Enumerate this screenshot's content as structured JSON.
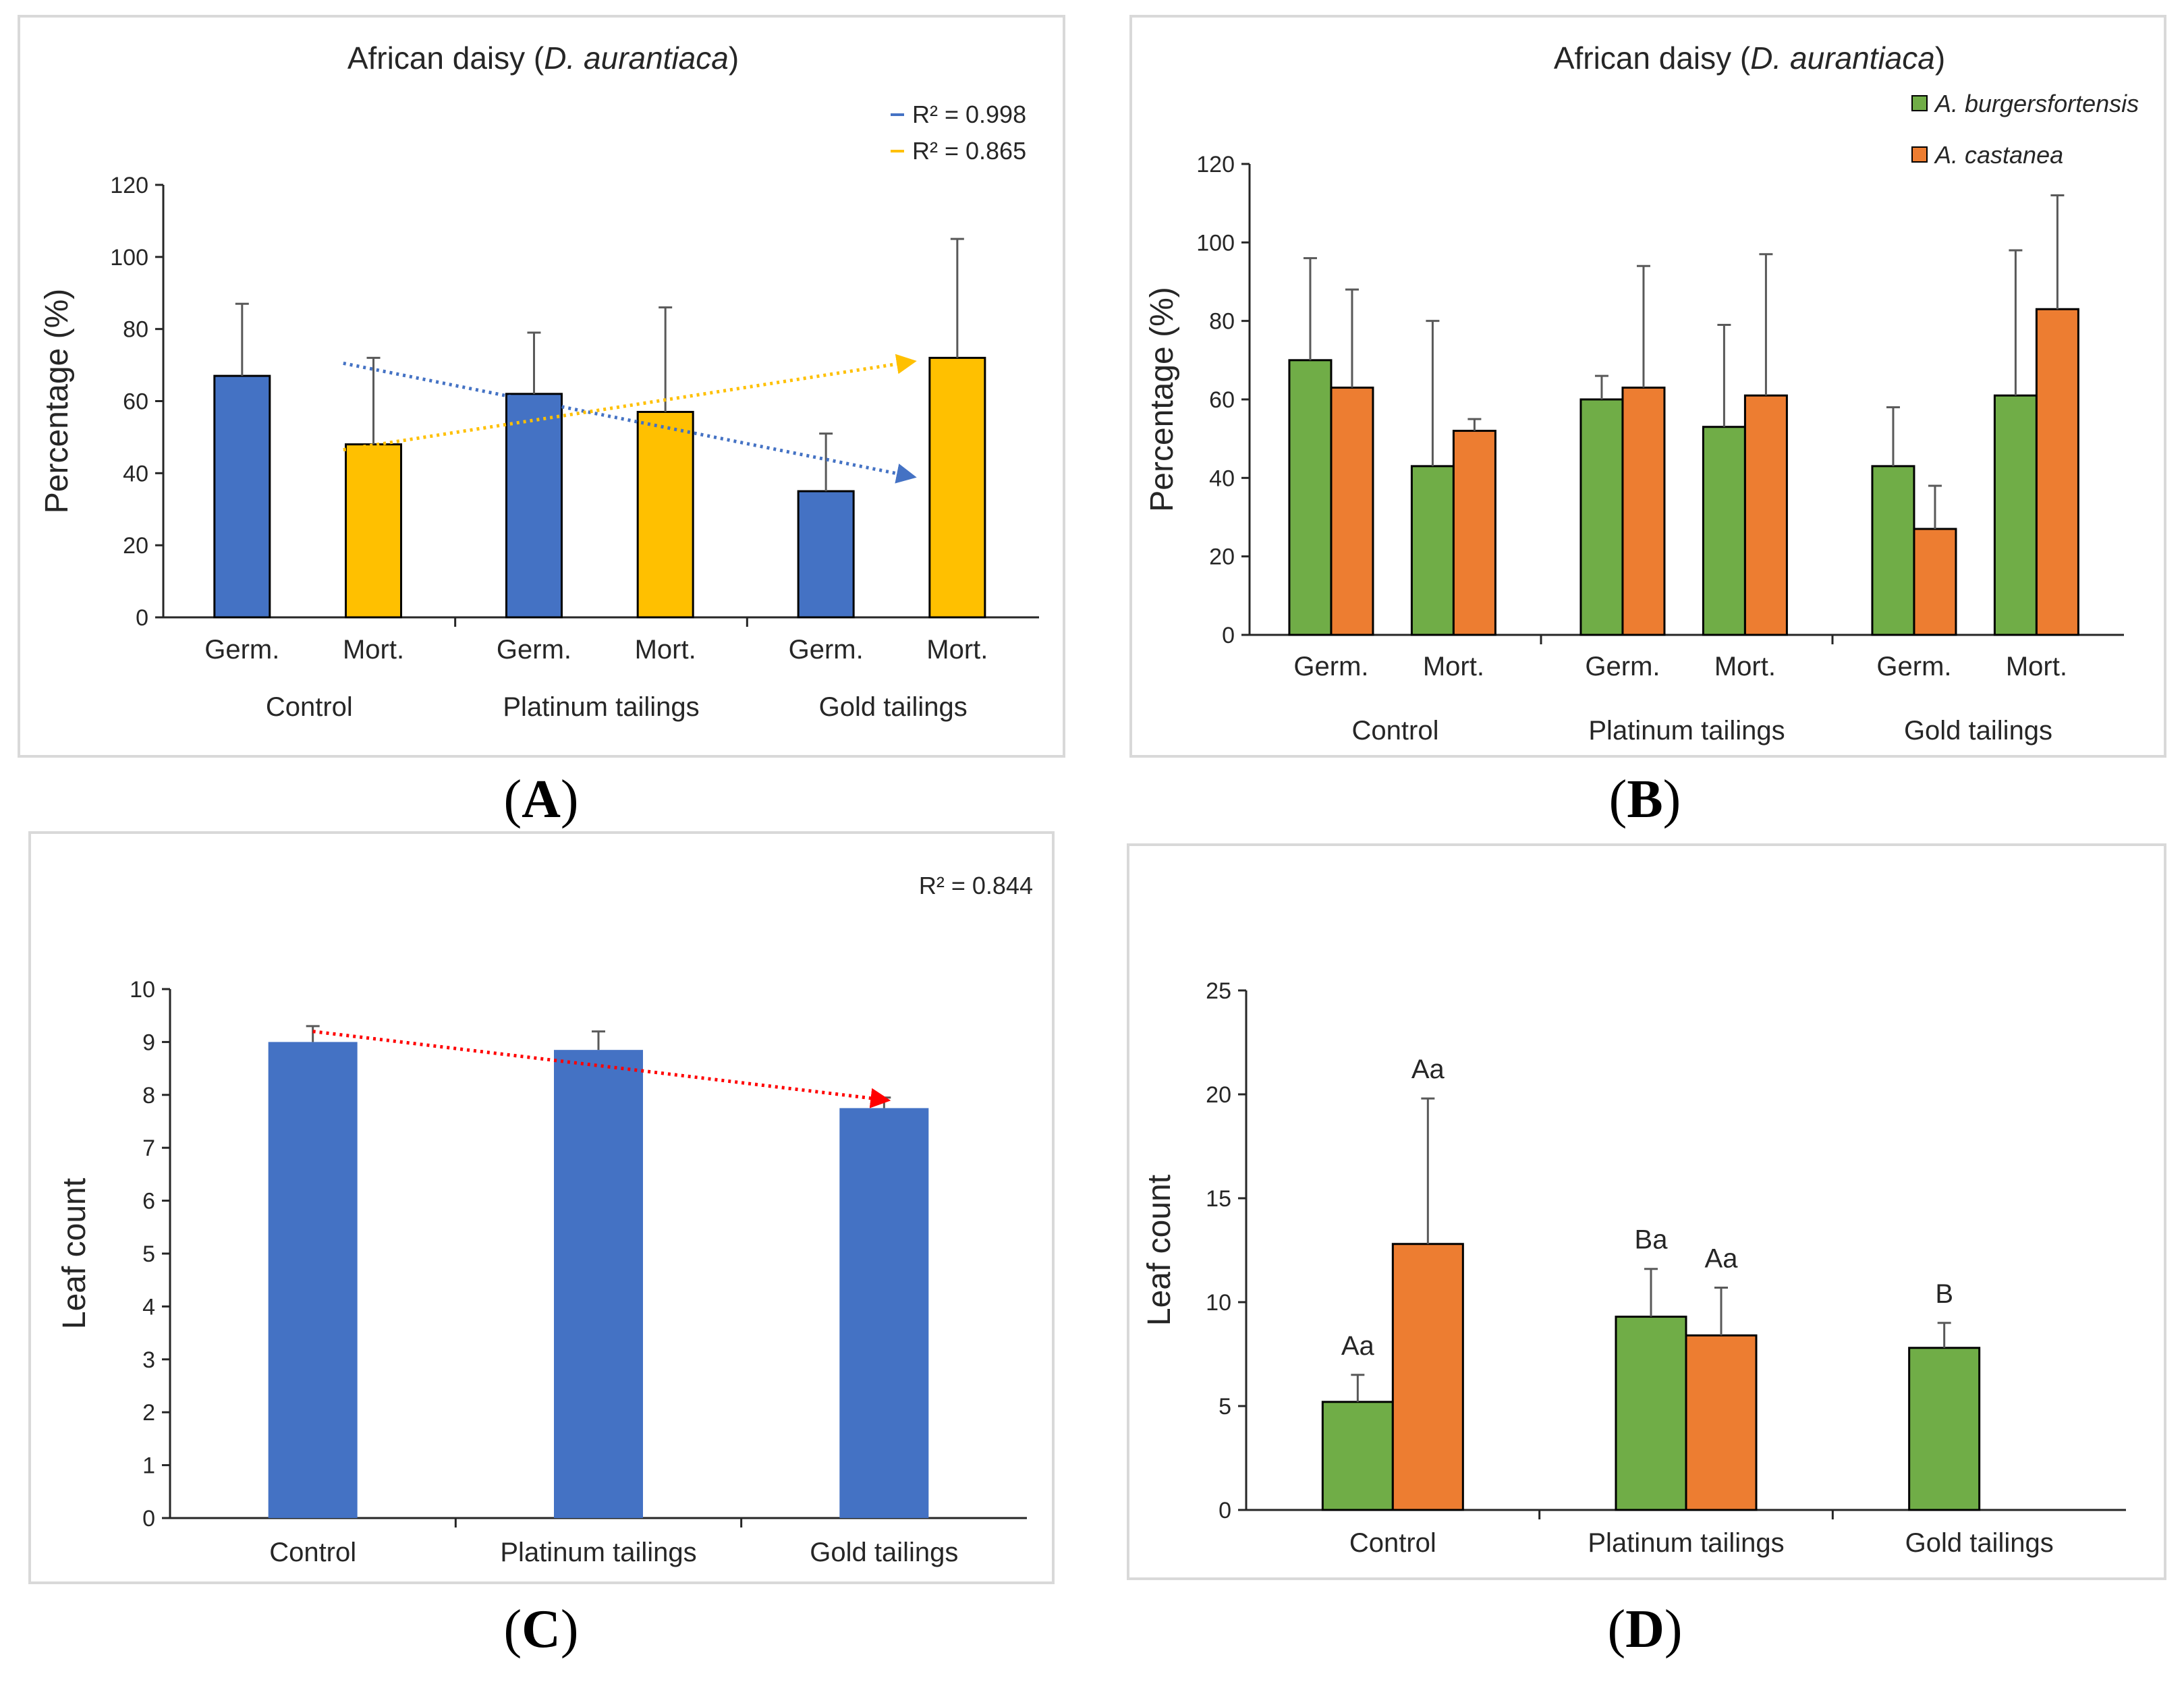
{
  "colors": {
    "blue": "#4472C4",
    "yellow": "#FFC000",
    "green": "#70AD47",
    "orange": "#ED7D31",
    "axis": "#262626",
    "error": "#595959",
    "trend_blue": "#4472C4",
    "trend_yellow": "#FFC000",
    "trend_red": "#FF0000"
  },
  "panel_labels": {
    "a": "A",
    "b": "B",
    "c": "C",
    "d": "D"
  },
  "chart_data": [
    {
      "id": "A",
      "type": "bar",
      "title_plain": "African daisy (",
      "title_italic": "D. aurantiaca",
      "title_end": ")",
      "ylabel": "Percentage (%)",
      "ylim": [
        0,
        120
      ],
      "yticks": [
        "0",
        "20",
        "40",
        "60",
        "80",
        "100",
        "120"
      ],
      "groups": [
        "Control",
        "Platinum tailings",
        "Gold tailings"
      ],
      "subcategories": [
        "Germ.",
        "Mort."
      ],
      "bars": [
        {
          "group": 0,
          "sub": 0,
          "value": 67,
          "err": 20,
          "color": "blue"
        },
        {
          "group": 0,
          "sub": 1,
          "value": 48,
          "err": 24,
          "color": "yellow"
        },
        {
          "group": 1,
          "sub": 0,
          "value": 62,
          "err": 17,
          "color": "blue"
        },
        {
          "group": 1,
          "sub": 1,
          "value": 57,
          "err": 29,
          "color": "yellow"
        },
        {
          "group": 2,
          "sub": 0,
          "value": 35,
          "err": 16,
          "color": "blue"
        },
        {
          "group": 2,
          "sub": 1,
          "value": 72,
          "err": 33,
          "color": "yellow"
        }
      ],
      "trendlines": [
        {
          "color": "trend_blue",
          "y_start": 70.5,
          "y_end": 39,
          "r2": "R² = 0.998"
        },
        {
          "color": "trend_yellow",
          "y_start": 46.5,
          "y_end": 71,
          "r2": "R² = 0.865"
        }
      ]
    },
    {
      "id": "B",
      "type": "bar",
      "title_plain": "African daisy (",
      "title_italic": "D. aurantiaca",
      "title_end": ")",
      "ylabel": "Percentage (%)",
      "ylim": [
        0,
        120
      ],
      "yticks": [
        "0",
        "20",
        "40",
        "60",
        "80",
        "100",
        "120"
      ],
      "groups": [
        "Control",
        "Platinum tailings",
        "Gold tailings"
      ],
      "subcategories": [
        "Germ.",
        "Mort."
      ],
      "legend": [
        "A. burgersfortensis",
        "A. castanea"
      ],
      "series": [
        {
          "name": "A. burgersfortensis",
          "color": "green",
          "values": [
            70,
            43,
            60,
            53,
            43,
            61
          ],
          "errs": [
            26,
            37,
            6,
            26,
            15,
            37
          ]
        },
        {
          "name": "A. castanea",
          "color": "orange",
          "values": [
            63,
            52,
            63,
            61,
            27,
            83
          ],
          "errs": [
            25,
            3,
            31,
            36,
            11,
            29
          ]
        }
      ]
    },
    {
      "id": "C",
      "type": "bar",
      "ylabel": "Leaf count",
      "ylim": [
        0,
        10
      ],
      "yticks": [
        "0",
        "1",
        "2",
        "3",
        "4",
        "5",
        "6",
        "7",
        "8",
        "9",
        "10"
      ],
      "categories": [
        "Control",
        "Platinum tailings",
        "Gold tailings"
      ],
      "values": [
        9.0,
        8.85,
        7.75
      ],
      "errs": [
        0.3,
        0.35,
        0.2
      ],
      "color": "blue",
      "trendline": {
        "color": "trend_red",
        "y_start": 9.2,
        "y_end": 7.9,
        "r2": "R² = 0.844"
      }
    },
    {
      "id": "D",
      "type": "bar",
      "ylabel": "Leaf count",
      "ylim": [
        0,
        25
      ],
      "yticks": [
        "0",
        "5",
        "10",
        "15",
        "20",
        "25"
      ],
      "categories": [
        "Control",
        "Platinum tailings",
        "Gold tailings"
      ],
      "series": [
        {
          "name": "A. burgersfortensis",
          "color": "green",
          "values": [
            5.2,
            9.3,
            7.8
          ],
          "errs": [
            1.3,
            2.3,
            1.2
          ],
          "letters": [
            "Aa",
            "Ba",
            "B"
          ]
        },
        {
          "name": "A. castanea",
          "color": "orange",
          "values": [
            12.8,
            8.4,
            null
          ],
          "errs": [
            7.0,
            2.3,
            null
          ],
          "letters": [
            "Aa",
            "Aa",
            ""
          ]
        }
      ]
    }
  ]
}
